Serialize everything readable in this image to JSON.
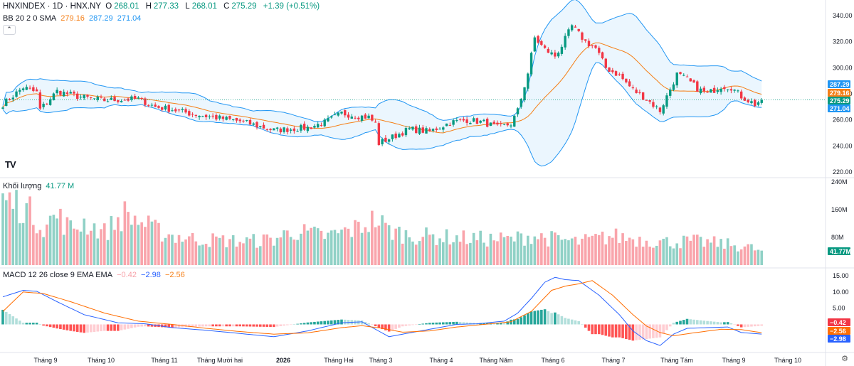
{
  "header": {
    "symbol": "HNXINDEX · 1D · HNX.NY",
    "o_label": "O",
    "o": "268.01",
    "h_label": "H",
    "h": "277.33",
    "l_label": "L",
    "l": "268.01",
    "c_label": "C",
    "c": "275.29",
    "change": "+1.39 (+0.51%)"
  },
  "bb_legend": {
    "label": "BB 20 2 0 SMA",
    "basis": "279.16",
    "upper": "287.29",
    "lower": "271.04"
  },
  "vol_legend": {
    "label": "Khối lượng",
    "value": "41.77 M"
  },
  "macd_legend": {
    "label": "MACD 12 26 close 9 EMA EMA",
    "hist": "−0.42",
    "macd": "−2.98",
    "signal": "−2.56"
  },
  "colors": {
    "up": "#089981",
    "down": "#f23645",
    "bb_basis": "#f57f17",
    "bb_band": "#2196f3",
    "macd": "#2962ff",
    "signal": "#ff6d00"
  },
  "icons": {
    "collapse": "chevron-up-icon",
    "logo": "tradingview-logo-icon",
    "settings": "gear-icon"
  },
  "chart_data": {
    "type": "candlestick",
    "x_labels": [
      "Tháng 9",
      "Tháng 10",
      "Tháng 11",
      "Tháng Mười hai",
      "2026",
      "Tháng Hai",
      "Tháng 3",
      "Tháng 4",
      "Tháng Năm",
      "Tháng 6",
      "Tháng 7",
      "Tháng Tám",
      "Tháng 9",
      "Tháng 10"
    ],
    "price_axis": {
      "ticks": [
        "340.00",
        "320.00",
        "300.00",
        "280.00",
        "260.00",
        "240.00",
        "220.00"
      ],
      "range": [
        220,
        340
      ]
    },
    "price_markers": [
      {
        "label": "287.29",
        "value": 287.29,
        "color": "#2196f3"
      },
      {
        "label": "279.16",
        "value": 279.16,
        "color": "#f57f17"
      },
      {
        "label": "275.29",
        "value": 275.29,
        "color": "#089981"
      },
      {
        "label": "271.04",
        "value": 271.04,
        "color": "#2196f3"
      }
    ],
    "volume_axis": {
      "ticks": [
        "240M",
        "160M",
        "80M"
      ],
      "range": [
        0,
        240
      ]
    },
    "volume_marker": {
      "label": "41.77M",
      "value": 41.77
    },
    "macd_axis": {
      "ticks": [
        "15.00",
        "10.00",
        "5.00"
      ],
      "range": [
        -8,
        15
      ]
    },
    "macd_markers": [
      {
        "label": "−0.42",
        "value": -0.42,
        "color": "#f23645"
      },
      {
        "label": "−2.56",
        "value": -2.56,
        "color": "#ff6d00"
      },
      {
        "label": "−2.98",
        "value": -2.98,
        "color": "#2962ff"
      }
    ],
    "close_anchors": [
      [
        0,
        272
      ],
      [
        6,
        285
      ],
      [
        10,
        281
      ],
      [
        11,
        268
      ],
      [
        16,
        282
      ],
      [
        22,
        278
      ],
      [
        30,
        275
      ],
      [
        40,
        276
      ],
      [
        45,
        270
      ],
      [
        50,
        268
      ],
      [
        55,
        265
      ],
      [
        62,
        262
      ],
      [
        70,
        259
      ],
      [
        80,
        252
      ],
      [
        90,
        254
      ],
      [
        95,
        258
      ],
      [
        100,
        265
      ],
      [
        105,
        263
      ],
      [
        108,
        262
      ],
      [
        110,
        257
      ],
      [
        111,
        242
      ],
      [
        116,
        248
      ],
      [
        120,
        253
      ],
      [
        126,
        251
      ],
      [
        132,
        258
      ],
      [
        137,
        260
      ],
      [
        142,
        258
      ],
      [
        146,
        254
      ],
      [
        150,
        257
      ],
      [
        152,
        267
      ],
      [
        155,
        296
      ],
      [
        157,
        323
      ],
      [
        160,
        314
      ],
      [
        163,
        309
      ],
      [
        165,
        317
      ],
      [
        168,
        332
      ],
      [
        172,
        320
      ],
      [
        175,
        315
      ],
      [
        178,
        300
      ],
      [
        182,
        294
      ],
      [
        186,
        283
      ],
      [
        190,
        276
      ],
      [
        194,
        267
      ],
      [
        196,
        278
      ],
      [
        199,
        295
      ],
      [
        202,
        291
      ],
      [
        205,
        284
      ],
      [
        208,
        280
      ],
      [
        212,
        286
      ],
      [
        215,
        285
      ],
      [
        218,
        278
      ],
      [
        222,
        272
      ],
      [
        224,
        275.29
      ]
    ],
    "volume_anchors": [
      [
        0,
        200
      ],
      [
        6,
        180
      ],
      [
        12,
        120
      ],
      [
        16,
        150
      ],
      [
        20,
        110
      ],
      [
        24,
        130
      ],
      [
        30,
        100
      ],
      [
        36,
        155
      ],
      [
        40,
        135
      ],
      [
        44,
        110
      ],
      [
        50,
        90
      ],
      [
        56,
        80
      ],
      [
        64,
        75
      ],
      [
        72,
        72
      ],
      [
        80,
        78
      ],
      [
        86,
        105
      ],
      [
        90,
        95
      ],
      [
        96,
        88
      ],
      [
        104,
        110
      ],
      [
        110,
        140
      ],
      [
        114,
        105
      ],
      [
        120,
        90
      ],
      [
        130,
        85
      ],
      [
        140,
        80
      ],
      [
        150,
        78
      ],
      [
        156,
        90
      ],
      [
        162,
        80
      ],
      [
        170,
        70
      ],
      [
        180,
        88
      ],
      [
        188,
        78
      ],
      [
        196,
        70
      ],
      [
        204,
        72
      ],
      [
        212,
        65
      ],
      [
        220,
        55
      ],
      [
        224,
        41.77
      ]
    ],
    "macd_anchors": [
      [
        0,
        8.5
      ],
      [
        6,
        10.5
      ],
      [
        10,
        10.2
      ],
      [
        16,
        7
      ],
      [
        24,
        3
      ],
      [
        34,
        0.5
      ],
      [
        42,
        0.2
      ],
      [
        50,
        -1
      ],
      [
        60,
        -1.8
      ],
      [
        70,
        -2.8
      ],
      [
        80,
        -3.8
      ],
      [
        90,
        -2
      ],
      [
        100,
        0.5
      ],
      [
        106,
        0.8
      ],
      [
        110,
        -1.5
      ],
      [
        114,
        -3.8
      ],
      [
        118,
        -3
      ],
      [
        126,
        -1.5
      ],
      [
        134,
        0
      ],
      [
        140,
        0.2
      ],
      [
        148,
        1
      ],
      [
        152,
        3.5
      ],
      [
        156,
        8
      ],
      [
        160,
        13
      ],
      [
        163,
        14.5
      ],
      [
        166,
        13.8
      ],
      [
        170,
        13.5
      ],
      [
        176,
        9
      ],
      [
        182,
        3
      ],
      [
        186,
        -2
      ],
      [
        190,
        -5
      ],
      [
        194,
        -6.5
      ],
      [
        198,
        -3
      ],
      [
        202,
        -1.2
      ],
      [
        208,
        -1
      ],
      [
        214,
        -0.8
      ],
      [
        218,
        -2.5
      ],
      [
        224,
        -2.98
      ]
    ],
    "signal_anchors": [
      [
        0,
        4
      ],
      [
        6,
        10
      ],
      [
        12,
        9.5
      ],
      [
        20,
        7
      ],
      [
        30,
        3.5
      ],
      [
        40,
        1
      ],
      [
        50,
        0
      ],
      [
        60,
        -1.2
      ],
      [
        70,
        -2.2
      ],
      [
        80,
        -3
      ],
      [
        90,
        -2.6
      ],
      [
        100,
        -1
      ],
      [
        106,
        -0.4
      ],
      [
        112,
        -1.2
      ],
      [
        118,
        -2.4
      ],
      [
        126,
        -2
      ],
      [
        134,
        -0.8
      ],
      [
        142,
        0
      ],
      [
        150,
        0.8
      ],
      [
        156,
        4
      ],
      [
        162,
        10.5
      ],
      [
        166,
        11.8
      ],
      [
        170,
        12.5
      ],
      [
        174,
        13.5
      ],
      [
        180,
        9
      ],
      [
        186,
        3
      ],
      [
        190,
        -0.5
      ],
      [
        194,
        -2.5
      ],
      [
        198,
        -3.5
      ],
      [
        204,
        -2.6
      ],
      [
        212,
        -1.5
      ],
      [
        218,
        -1.6
      ],
      [
        224,
        -2.56
      ]
    ]
  }
}
